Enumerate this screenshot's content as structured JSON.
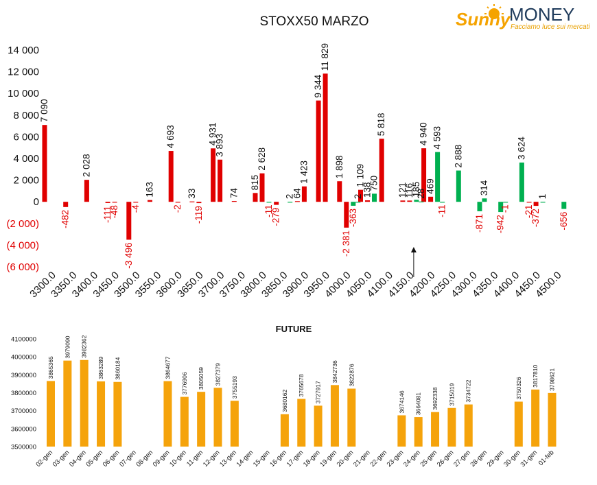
{
  "brand": {
    "name_part1": "Sunny",
    "name_part2": "MONEY",
    "tagline": "Facciamo luce sui mercati",
    "colors": {
      "sun": "#F5A300",
      "text": "#1F3B5B",
      "tagline": "#E8A000"
    }
  },
  "colors": {
    "positive": "#E00000",
    "negative": "#00B050",
    "negative_label": "#E00000",
    "bars_future": "#F5A30B"
  },
  "chart_data": [
    {
      "type": "bar",
      "title": "STOXX50 MARZO",
      "categories": [
        "3300.0",
        "3350.0",
        "3400.0",
        "3450.0",
        "3500.0",
        "3550.0",
        "3600.0",
        "3650.0",
        "3700.0",
        "3750.0",
        "3800.0",
        "3850.0",
        "3900.0",
        "3950.0",
        "4000.0",
        "4050.0",
        "4100.0",
        "4150.0",
        "4200.0",
        "4250.0",
        "4300.0",
        "4350.0",
        "4400.0",
        "4450.0",
        "4500.0"
      ],
      "ylim": [
        -6000,
        14000
      ],
      "yticks": [
        -6000,
        -4000,
        -2000,
        0,
        2000,
        4000,
        6000,
        8000,
        10000,
        12000,
        14000
      ],
      "ytick_labels": [
        "(6 000)",
        "(4 000)",
        "(2 000)",
        "0",
        "2 000",
        "4 000",
        "6 000",
        "8 000",
        "10 000",
        "12 000",
        "14 000"
      ],
      "series": [
        {
          "color": "red",
          "values": [
            7090,
            -482,
            2028,
            -111,
            -3496,
            163,
            4693,
            33,
            4931,
            74,
            815,
            -279,
            64,
            9344,
            1898,
            1109,
            5818,
            121,
            4940,
            null,
            null,
            null,
            null,
            -21,
            null
          ],
          "labels": [
            "7 090",
            "-482",
            "2 028",
            "-111",
            "-3 496",
            "163",
            "4 693",
            "33",
            "4 931",
            "74",
            "815",
            "-279",
            "64",
            "9 344",
            "1 898",
            "1 109",
            "5 818",
            "121",
            "4 940",
            "",
            "",
            "",
            "",
            "-21",
            ""
          ]
        },
        {
          "color": "red",
          "values": [
            null,
            null,
            null,
            -48,
            -4,
            null,
            -2,
            -119,
            3893,
            null,
            2628,
            null,
            1423,
            11829,
            -2381,
            138,
            null,
            116,
            469,
            null,
            null,
            null,
            null,
            -372,
            null
          ],
          "labels": [
            "",
            "",
            "",
            "-48",
            "-4",
            "",
            "-2",
            "-119",
            "3 893",
            "",
            "2 628",
            "",
            "1 423",
            "11 829",
            "-2 381",
            "138",
            "",
            "116",
            "469",
            "",
            "",
            "",
            "",
            "-372",
            ""
          ]
        },
        {
          "color": "green",
          "values": [
            null,
            null,
            null,
            null,
            null,
            null,
            null,
            null,
            null,
            null,
            -11,
            2,
            null,
            null,
            -363,
            750,
            null,
            185,
            4593,
            2888,
            -871,
            -942,
            3624,
            1,
            -656
          ],
          "labels": [
            "",
            "",
            "",
            "",
            "",
            "",
            "",
            "",
            "",
            "",
            "-11",
            "2",
            "",
            "",
            "-363",
            "750",
            "",
            "185",
            "4 593",
            "2 888",
            "-871",
            "-942",
            "3 624",
            "1",
            "-656"
          ]
        },
        {
          "color": "green",
          "values": [
            null,
            null,
            null,
            null,
            null,
            null,
            null,
            null,
            null,
            null,
            null,
            null,
            null,
            null,
            2,
            null,
            null,
            28,
            -11,
            null,
            314,
            -1,
            null,
            null,
            null
          ],
          "labels": [
            "",
            "",
            "",
            "",
            "",
            "",
            "",
            "",
            "",
            "",
            "",
            "",
            "",
            "",
            "2",
            "",
            "",
            "28",
            "-11",
            "",
            "314",
            "-1",
            "",
            "",
            ""
          ]
        }
      ],
      "annotation": {
        "type": "arrow",
        "at_category": "4150.0"
      }
    },
    {
      "type": "bar",
      "title": "FUTURE",
      "categories": [
        "02-gen",
        "03-gen",
        "04-gen",
        "05-gen",
        "06-gen",
        "07-gen",
        "08-gen",
        "09-gen",
        "10-gen",
        "11-gen",
        "12-gen",
        "13-gen",
        "14-gen",
        "15-gen",
        "16-gen",
        "17-gen",
        "18-gen",
        "19-gen",
        "20-gen",
        "21-gen",
        "22-gen",
        "23-gen",
        "24-gen",
        "25-gen",
        "26-gen",
        "27-gen",
        "28-gen",
        "29-gen",
        "30-gen",
        "31-gen",
        "01-feb"
      ],
      "values": [
        3865365,
        3979090,
        3982362,
        3863289,
        3860184,
        null,
        null,
        3864677,
        3776906,
        3805059,
        3827379,
        3755193,
        null,
        null,
        3680162,
        3765678,
        3727917,
        3842736,
        3822876,
        null,
        null,
        3674146,
        3664081,
        3692338,
        3715019,
        3734722,
        null,
        null,
        3750326,
        3817810,
        3798621
      ],
      "ylim": [
        3500000,
        4100000
      ],
      "yticks": [
        3500000,
        3600000,
        3700000,
        3800000,
        3900000,
        4000000,
        4100000
      ],
      "ytick_labels": [
        "3500000",
        "3600000",
        "3700000",
        "3800000",
        "3900000",
        "4000000",
        "4100000"
      ]
    }
  ]
}
